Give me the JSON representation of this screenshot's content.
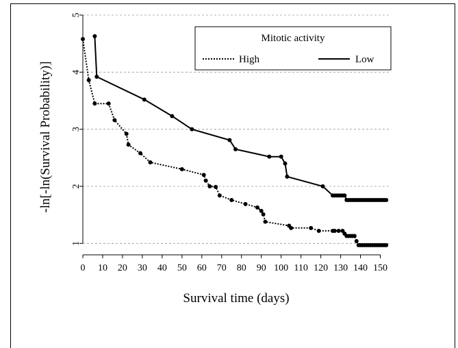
{
  "chart_data": {
    "type": "line",
    "xlabel": "Survival time (days)",
    "ylabel": "-ln[-ln(Survival Probability)]",
    "xlim": [
      0,
      155
    ],
    "ylim": [
      0.8,
      5
    ],
    "xticks": [
      0,
      10,
      20,
      30,
      40,
      50,
      60,
      70,
      80,
      90,
      100,
      110,
      120,
      130,
      140,
      150
    ],
    "yticks": [
      1,
      2,
      3,
      4,
      5
    ],
    "grid": "horizontal dashed",
    "legend": {
      "title": "Mitotic activity",
      "placement": "top-right"
    },
    "series": [
      {
        "name": "High",
        "style": "dotted",
        "x": [
          0,
          3,
          6,
          13,
          16,
          22,
          23,
          29,
          34,
          50,
          61,
          62,
          64,
          67,
          69,
          75,
          82,
          88,
          90,
          91,
          92,
          104,
          105,
          115,
          119,
          126,
          127,
          129,
          131,
          132,
          133,
          134,
          135,
          136,
          137,
          138,
          139,
          140,
          141,
          142,
          143,
          144,
          145,
          146,
          147,
          148,
          149,
          150,
          151,
          152,
          153
        ],
        "y": [
          4.58,
          3.86,
          3.45,
          3.45,
          3.16,
          2.92,
          2.73,
          2.58,
          2.42,
          2.3,
          2.2,
          2.1,
          2.0,
          1.99,
          1.84,
          1.76,
          1.69,
          1.63,
          1.57,
          1.51,
          1.38,
          1.31,
          1.27,
          1.27,
          1.22,
          1.22,
          1.22,
          1.22,
          1.22,
          1.17,
          1.13,
          1.13,
          1.13,
          1.13,
          1.13,
          1.04,
          0.97,
          0.97,
          0.97,
          0.97,
          0.97,
          0.97,
          0.97,
          0.97,
          0.97,
          0.97,
          0.97,
          0.97,
          0.97,
          0.97,
          0.97
        ]
      },
      {
        "name": "Low",
        "style": "solid",
        "x": [
          6,
          7,
          31,
          45,
          55,
          74,
          77,
          94,
          100,
          102,
          103,
          121,
          126,
          127,
          128,
          129,
          130,
          131,
          132,
          133,
          134,
          135,
          136,
          137,
          138,
          139,
          140,
          141,
          142,
          143,
          144,
          145,
          146,
          147,
          148,
          149,
          150,
          151,
          152,
          153
        ],
        "y": [
          4.63,
          3.92,
          3.52,
          3.23,
          3.0,
          2.81,
          2.65,
          2.52,
          2.52,
          2.4,
          2.17,
          2.0,
          1.84,
          1.84,
          1.84,
          1.84,
          1.84,
          1.84,
          1.84,
          1.76,
          1.76,
          1.76,
          1.76,
          1.76,
          1.76,
          1.76,
          1.76,
          1.76,
          1.76,
          1.76,
          1.76,
          1.76,
          1.76,
          1.76,
          1.76,
          1.76,
          1.76,
          1.76,
          1.76,
          1.76
        ]
      }
    ]
  }
}
